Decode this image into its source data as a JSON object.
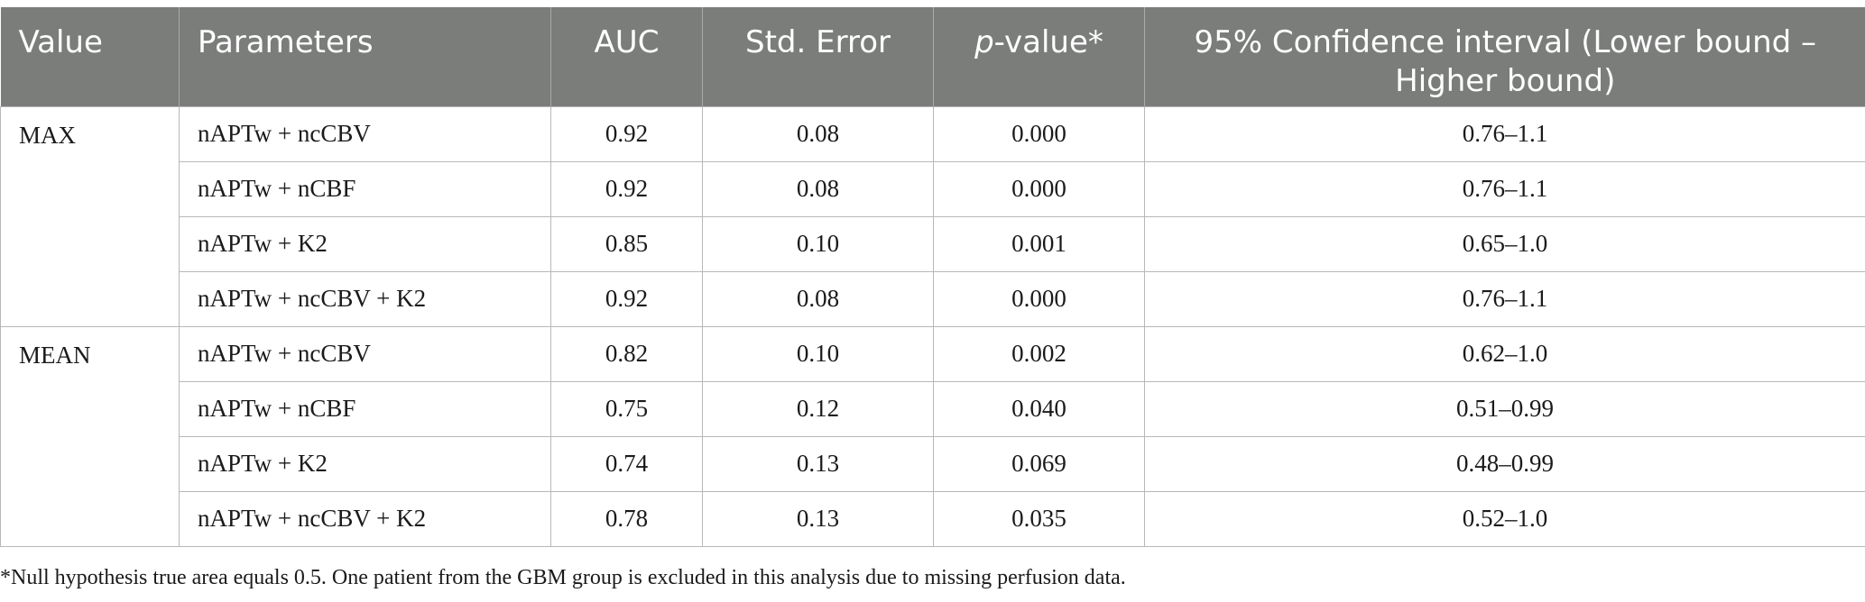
{
  "table": {
    "headers": {
      "value": "Value",
      "parameters": "Parameters",
      "auc": "AUC",
      "std_error": "Std. Error",
      "p_value_italic": "p",
      "p_value_rest": "-value*",
      "ci": "95% Confidence interval (Lower bound – Higher bound)"
    },
    "groups": [
      {
        "label": "MAX",
        "rows": [
          {
            "parameters": "nAPTw + ncCBV",
            "auc": "0.92",
            "std_error": "0.08",
            "p_value": "0.000",
            "ci": "0.76–1.1"
          },
          {
            "parameters": "nAPTw + nCBF",
            "auc": "0.92",
            "std_error": "0.08",
            "p_value": "0.000",
            "ci": "0.76–1.1"
          },
          {
            "parameters": "nAPTw + K2",
            "auc": "0.85",
            "std_error": "0.10",
            "p_value": "0.001",
            "ci": "0.65–1.0"
          },
          {
            "parameters": "nAPTw + ncCBV + K2",
            "auc": "0.92",
            "std_error": "0.08",
            "p_value": "0.000",
            "ci": "0.76–1.1"
          }
        ]
      },
      {
        "label": "MEAN",
        "rows": [
          {
            "parameters": "nAPTw + ncCBV",
            "auc": "0.82",
            "std_error": "0.10",
            "p_value": "0.002",
            "ci": "0.62–1.0"
          },
          {
            "parameters": "nAPTw + nCBF",
            "auc": "0.75",
            "std_error": "0.12",
            "p_value": "0.040",
            "ci": "0.51–0.99"
          },
          {
            "parameters": "nAPTw + K2",
            "auc": "0.74",
            "std_error": "0.13",
            "p_value": "0.069",
            "ci": "0.48–0.99"
          },
          {
            "parameters": "nAPTw + ncCBV + K2",
            "auc": "0.78",
            "std_error": "0.13",
            "p_value": "0.035",
            "ci": "0.52–1.0"
          }
        ]
      }
    ]
  },
  "footnote": "*Null hypothesis true area equals 0.5. One patient from the GBM group is excluded in this analysis due to missing perfusion data.",
  "colors": {
    "header_bg": "#7b7d7b",
    "header_text": "#ffffff",
    "grid": "#b8b8b8"
  }
}
